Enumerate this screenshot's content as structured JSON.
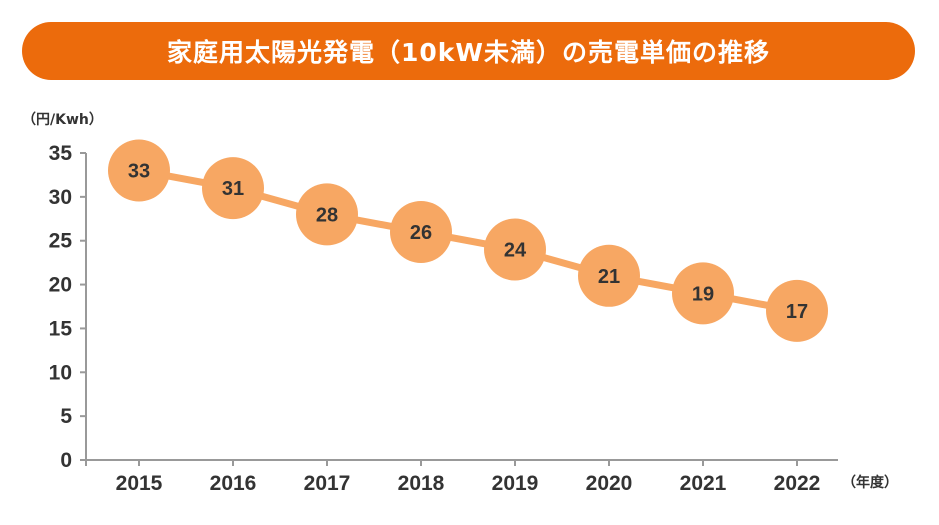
{
  "title": "家庭用太陽光発電（10kW未満）の売電単価の推移",
  "colors": {
    "title_bg": "#ec6b0c",
    "marker": "#f7a763",
    "line": "#f7a763",
    "axis": "#999999",
    "text": "#333333"
  },
  "chart_data": {
    "type": "line",
    "title": "家庭用太陽光発電（10kW未満）の売電単価の推移",
    "xlabel": "（年度）",
    "ylabel": "（円/Kwh）",
    "categories": [
      "2015",
      "2016",
      "2017",
      "2018",
      "2019",
      "2020",
      "2021",
      "2022"
    ],
    "series": [
      {
        "name": "売電単価",
        "values": [
          33,
          31,
          28,
          26,
          24,
          21,
          19,
          17
        ]
      }
    ],
    "yticks": [
      0,
      5,
      10,
      15,
      20,
      25,
      30,
      35
    ],
    "ylim": [
      0,
      35
    ],
    "grid": false,
    "legend": "none",
    "data_labels": true
  }
}
